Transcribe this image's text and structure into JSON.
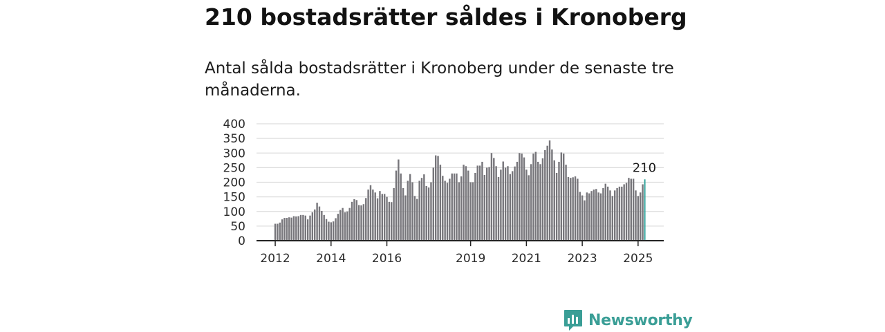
{
  "header": {
    "title": "210 bostadsrätter såldes i Kronoberg",
    "subtitle": "Antal sålda bostadsrätter i Kronoberg under de senaste tre månaderna."
  },
  "brand": {
    "name": "Newsworthy",
    "color": "#3a9e96"
  },
  "colors": {
    "bar": "#77767b",
    "highlight": "#2aa198",
    "grid": "#dddddd",
    "axis": "#222222"
  },
  "chart_data": {
    "type": "bar",
    "title": "210 bostadsrätter såldes i Kronoberg",
    "subtitle": "Antal sålda bostadsrätter i Kronoberg under de senaste tre månaderna.",
    "xlabel": "",
    "ylabel": "",
    "ylim": [
      0,
      400
    ],
    "yticks": [
      0,
      50,
      100,
      150,
      200,
      250,
      300,
      350,
      400
    ],
    "xlim": [
      2011.33,
      2025.92
    ],
    "xticks": [
      "2012",
      "2014",
      "2016",
      "2019",
      "2021",
      "2023",
      "2025"
    ],
    "grid": true,
    "legend": "none",
    "start": "2012-01",
    "frequency": "monthly",
    "highlight_last": true,
    "last_value_label": "210",
    "values": [
      58,
      58,
      62,
      73,
      78,
      78,
      80,
      79,
      84,
      83,
      84,
      88,
      88,
      86,
      73,
      86,
      97,
      107,
      130,
      117,
      102,
      88,
      74,
      65,
      63,
      66,
      77,
      92,
      105,
      112,
      97,
      100,
      112,
      133,
      142,
      139,
      122,
      121,
      125,
      146,
      175,
      190,
      175,
      165,
      145,
      170,
      160,
      160,
      150,
      133,
      132,
      180,
      240,
      278,
      230,
      180,
      155,
      205,
      228,
      200,
      153,
      143,
      205,
      215,
      227,
      187,
      182,
      200,
      250,
      292,
      290,
      260,
      222,
      205,
      198,
      212,
      230,
      230,
      230,
      200,
      220,
      260,
      255,
      240,
      200,
      200,
      232,
      257,
      257,
      270,
      225,
      250,
      252,
      300,
      283,
      255,
      218,
      243,
      271,
      250,
      255,
      228,
      238,
      254,
      270,
      300,
      298,
      285,
      243,
      224,
      262,
      298,
      304,
      270,
      262,
      282,
      310,
      325,
      343,
      312,
      275,
      232,
      270,
      302,
      298,
      260,
      218,
      215,
      217,
      220,
      212,
      167,
      155,
      138,
      165,
      162,
      170,
      175,
      177,
      165,
      162,
      180,
      195,
      185,
      172,
      153,
      172,
      180,
      185,
      185,
      193,
      198,
      215,
      212,
      212,
      172,
      153,
      165,
      193,
      210
    ]
  }
}
